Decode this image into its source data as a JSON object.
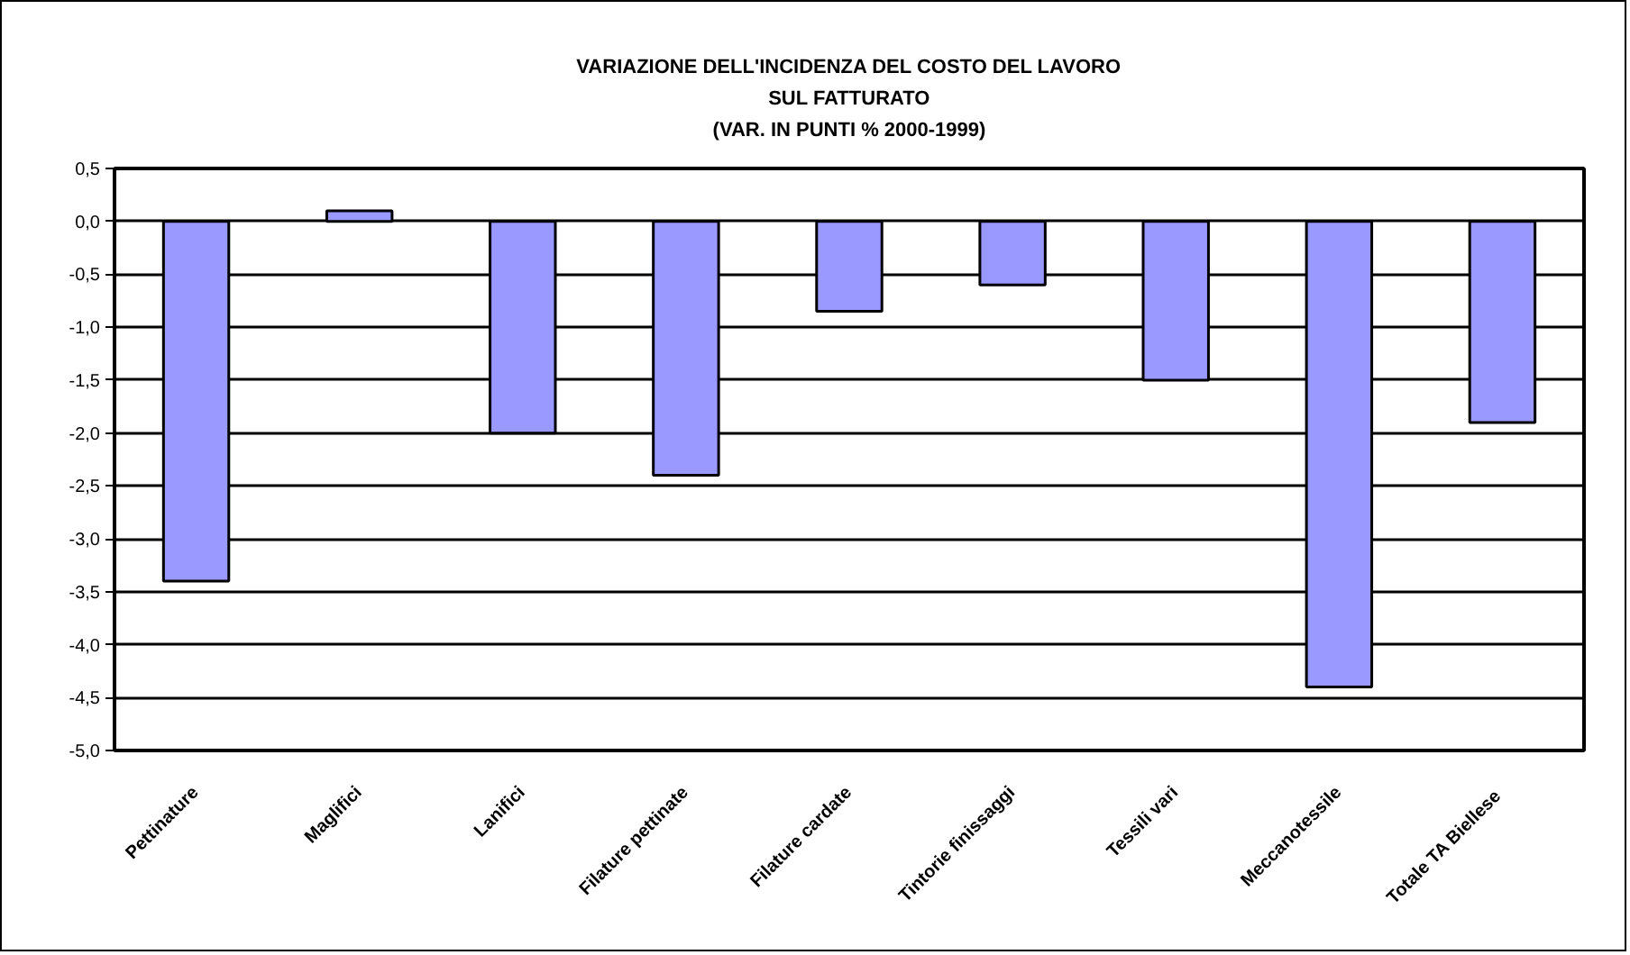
{
  "chart_data": {
    "type": "bar",
    "title": "VARIAZIONE DELL'INCIDENZA DEL COSTO DEL LAVORO\nSUL FATTURATO\n(VAR. IN PUNTI % 2000-1999)",
    "categories": [
      "Pettinature",
      "Maglifici",
      "Lanifici",
      "Filature pettinate",
      "Filature cardate",
      "Tintorie finissaggi",
      "Tessili vari",
      "Meccanotessile",
      "Totale  TA Biellese"
    ],
    "values": [
      -3.4,
      0.1,
      -2.0,
      -2.4,
      -0.85,
      -0.6,
      -1.5,
      -4.4,
      -1.9
    ],
    "color": "#9999ff",
    "ylim": [
      -5.0,
      0.5
    ],
    "yticks": [
      {
        "value": 0.5,
        "label": "0,5"
      },
      {
        "value": 0.0,
        "label": "0,0"
      },
      {
        "value": -0.5,
        "label": "-0,5"
      },
      {
        "value": -1.0,
        "label": "-1,0"
      },
      {
        "value": -1.5,
        "label": "-1,5"
      },
      {
        "value": -2.0,
        "label": "-2,0"
      },
      {
        "value": -2.5,
        "label": "-2,5"
      },
      {
        "value": -3.0,
        "label": "-3,0"
      },
      {
        "value": -3.5,
        "label": "-3,5"
      },
      {
        "value": -4.0,
        "label": "-4,0"
      },
      {
        "value": -4.5,
        "label": "-4,5"
      },
      {
        "value": -5.0,
        "label": "-5,0"
      }
    ],
    "grid": "y"
  }
}
